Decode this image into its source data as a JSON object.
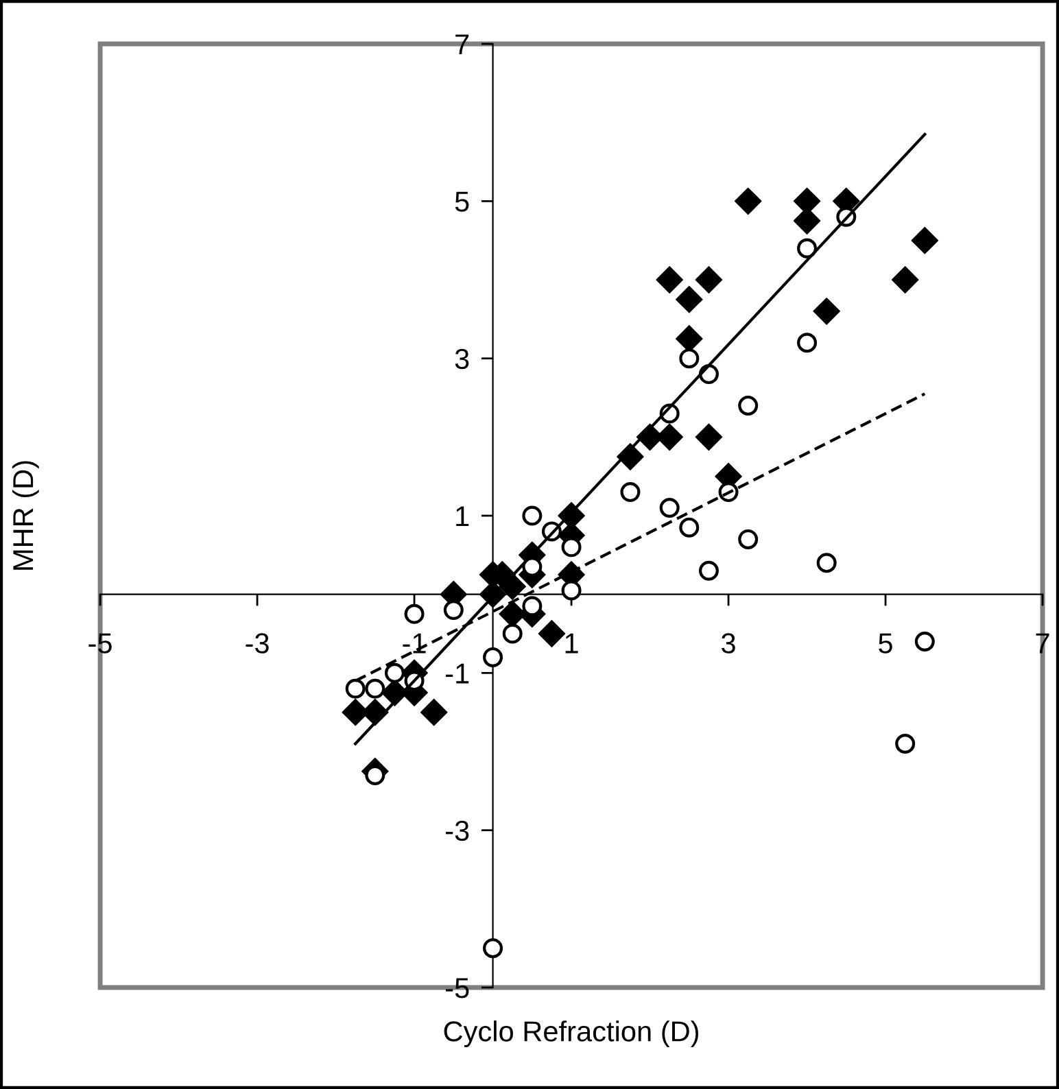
{
  "chart_data": {
    "type": "scatter",
    "xlabel": "Cyclo Refraction (D)",
    "ylabel": "MHR (D)",
    "xlim": [
      -5,
      7
    ],
    "ylim": [
      -5,
      7
    ],
    "xticks": [
      -5,
      -3,
      -1,
      1,
      3,
      5,
      7
    ],
    "yticks": [
      -5,
      -3,
      -1,
      1,
      3,
      5,
      7
    ],
    "grid": false,
    "legend": false,
    "series": [
      {
        "marker": "diamond",
        "color": "#000000",
        "x": [
          -0.5,
          0,
          0.12,
          0,
          0.25,
          0.5,
          0.5,
          1,
          1,
          1,
          0.25,
          0.5,
          0.75,
          -1,
          -1,
          -1.25,
          -1.5,
          -1.75,
          -0.75,
          -1.5,
          3.25,
          4,
          4.5,
          4,
          5.5,
          5.25,
          2.25,
          2.75,
          2.5,
          4.25,
          2.5,
          1.75,
          2,
          2.25,
          2.75,
          3
        ],
        "values": [
          0,
          0.25,
          0.25,
          0,
          0.1,
          0.5,
          0.25,
          1,
          0.75,
          0.25,
          -0.25,
          -0.25,
          -0.5,
          -1,
          -1.25,
          -1.25,
          -1.5,
          -1.5,
          -1.5,
          -2.25,
          5,
          5,
          5,
          4.75,
          4.5,
          4,
          4,
          4,
          3.75,
          3.6,
          3.25,
          1.75,
          2,
          2,
          2,
          1.5
        ]
      },
      {
        "marker": "circle",
        "color": "#000000",
        "x": [
          -1,
          -0.5,
          0.5,
          0.75,
          1,
          1,
          0.5,
          0.5,
          0.25,
          0,
          -1.25,
          -1.5,
          -1.75,
          -1,
          -1.5,
          1.75,
          2.25,
          4.5,
          4,
          4,
          2.5,
          2.75,
          2.25,
          3.25,
          3,
          2.5,
          3.25,
          2.75,
          4.25,
          5.5,
          5.25,
          0
        ],
        "values": [
          -0.25,
          -0.2,
          1,
          0.8,
          0.6,
          0.05,
          -0.15,
          0.35,
          -0.5,
          -0.8,
          -1,
          -1.2,
          -1.2,
          -1.1,
          -2.3,
          1.3,
          1.1,
          4.8,
          4.4,
          3.2,
          3,
          2.8,
          2.3,
          2.4,
          1.3,
          0.85,
          0.7,
          0.3,
          0.4,
          -0.6,
          -1.9,
          -4.5
        ]
      },
      {
        "type": "line",
        "line_style": "solid",
        "marker": "none",
        "color": "#000000",
        "x": [
          -1.75,
          5.5
        ],
        "values": [
          -1.9,
          5.85
        ]
      },
      {
        "type": "line",
        "line_style": "dashed",
        "marker": "none",
        "color": "#000000",
        "x": [
          -1.75,
          5.5
        ],
        "values": [
          -1.1,
          2.55
        ]
      }
    ]
  }
}
